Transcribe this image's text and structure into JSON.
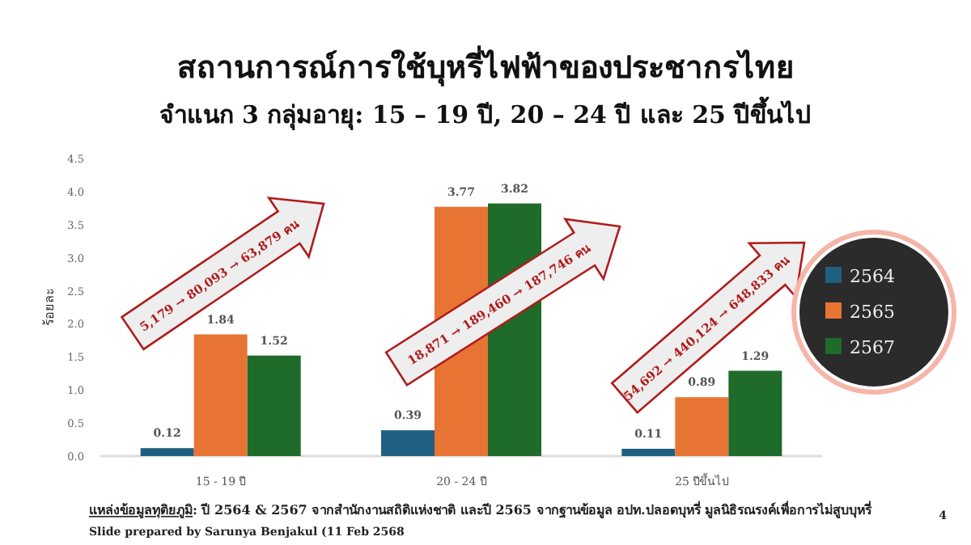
{
  "chart_data": {
    "type": "bar",
    "title": "สถานการณ์การใช้บุหรี่ไฟฟ้าของประชากรไทย",
    "subtitle": "จำแนก 3 กลุ่มอายุ: 15 – 19 ปี, 20 – 24 ปี และ 25 ปีขึ้นไป",
    "ylabel": "ร้อยละ",
    "categories": [
      "15 - 19 ปี",
      "20 - 24 ปี",
      "25 ปีขึ้นไป"
    ],
    "series": [
      {
        "name": "2564",
        "color": "#1f5f82",
        "values": [
          0.12,
          0.39,
          0.11
        ]
      },
      {
        "name": "2565",
        "color": "#e87434",
        "values": [
          1.84,
          3.77,
          0.89
        ]
      },
      {
        "name": "2567",
        "color": "#1e6b2a",
        "values": [
          1.52,
          3.82,
          1.29
        ]
      }
    ],
    "ylim": [
      0,
      4.5
    ],
    "yticks": [
      {
        "value": 0,
        "label": "0.0"
      },
      {
        "value": 0.5,
        "label": "0.5"
      },
      {
        "value": 1,
        "label": "1.0"
      },
      {
        "value": 1.5,
        "label": "1.5"
      },
      {
        "value": 2,
        "label": "2.0"
      },
      {
        "value": 2.5,
        "label": "2.5"
      },
      {
        "value": 3,
        "label": "3.0"
      },
      {
        "value": 3.5,
        "label": "3.5"
      },
      {
        "value": 4,
        "label": "4.0"
      },
      {
        "value": 4.5,
        "label": "4.5"
      }
    ],
    "data_labels": true,
    "legend": "right",
    "annotations": [
      "5,179 → 80,093 → 63,879 คน",
      "18,871 → 189,460 → 187,746 คน",
      "54,692 → 440,124 → 648,833 คน",
      "แหล่งข้อมูลทุติยภูมิ: ปี 2564 & 2567 จากสำนักงานสถิติแห่งชาติ และปี 2565 จากฐานข้อมูล อปท.ปลอดบุหรี่ มูลนิธิรณรงค์เพื่อการไม่สูบบุหรี่",
      "Slide prepared by Sarunya Benjakul (11 Feb 2568",
      "4"
    ]
  }
}
